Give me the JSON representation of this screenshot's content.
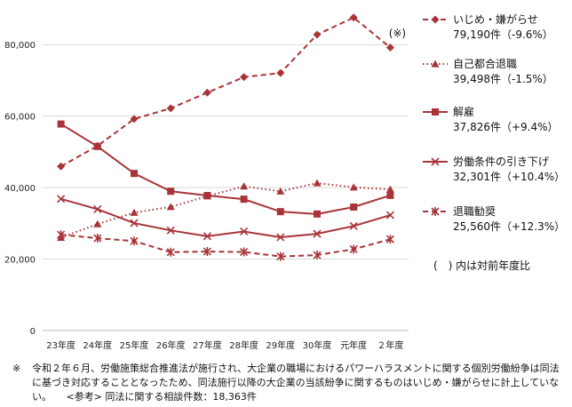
{
  "chart_data": {
    "type": "line",
    "title": "",
    "xlabel": "",
    "ylabel": "",
    "ylim": [
      0,
      90000
    ],
    "yticks": [
      0,
      20000,
      40000,
      60000,
      80000
    ],
    "ytick_labels": [
      "0",
      "20,000",
      "40,000",
      "60,000",
      "80,000"
    ],
    "categories": [
      "23年度",
      "24年度",
      "25年度",
      "26年度",
      "27年度",
      "28年度",
      "29年度",
      "30年度",
      "元年度",
      "２年度"
    ],
    "grid": "horizontal",
    "annotation": "(※)",
    "series": [
      {
        "name": "いじめ・嫌がらせ",
        "summary": "79,190件（-9.6%）",
        "color": "#a8343a",
        "line_style": "dashed",
        "marker": "diamond",
        "values": [
          45939,
          51670,
          59197,
          62191,
          66566,
          70917,
          72067,
          82797,
          87570,
          79190
        ]
      },
      {
        "name": "自己都合退職",
        "summary": "39,498件（-1.5%）",
        "color": "#a8343a",
        "line_style": "dotted",
        "marker": "triangle",
        "values": [
          26000,
          29800,
          33000,
          34600,
          37600,
          40364,
          38954,
          41258,
          40081,
          39498
        ]
      },
      {
        "name": "解雇",
        "summary": "37,826件（+9.4%）",
        "color": "#a8343a",
        "line_style": "solid",
        "marker": "square",
        "values": [
          57785,
          51515,
          43956,
          38966,
          37787,
          36760,
          33269,
          32614,
          34561,
          37826
        ]
      },
      {
        "name": "労働条件の引き下げ",
        "summary": "32,301件（+10.4%）",
        "color": "#a8343a",
        "line_style": "solid",
        "marker": "x",
        "values": [
          36849,
          33955,
          30067,
          28015,
          26392,
          27723,
          26101,
          27069,
          29254,
          32301
        ]
      },
      {
        "name": "退職勧奨",
        "summary": "25,560件（+12.3%）",
        "color": "#a8343a",
        "line_style": "dashed",
        "marker": "asterisk",
        "values": [
          26828,
          25838,
          25041,
          21928,
          22120,
          21993,
          20736,
          21125,
          22762,
          25560
        ]
      }
    ]
  },
  "legend_note": "(　) 内は対前年度比",
  "footnote": {
    "mark": "※",
    "text": "令和２年６月、労働施策総合推進法が施行され、大企業の職場におけるパワーハラスメントに関する個別労働紛争は同法に基づき対応することとなったため、同法施行以降の大企業の当該紛争に関するものはいじめ・嫌がらせに計上していない。　　<参考> 同法に関する相談件数：18,363件"
  }
}
